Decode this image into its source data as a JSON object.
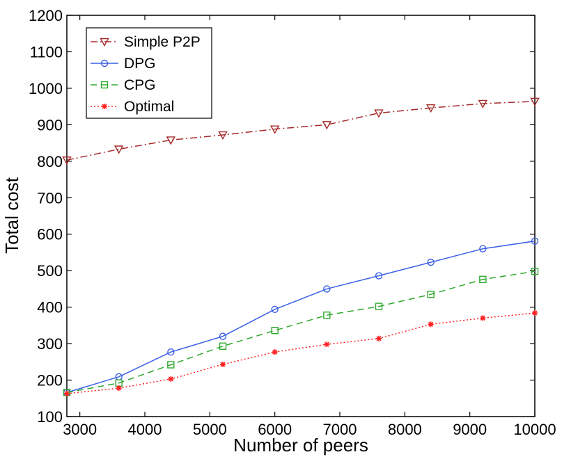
{
  "chart_data": {
    "type": "line",
    "title": "",
    "xlabel": "Number of peers",
    "ylabel": "Total cost",
    "xlim": [
      2800,
      10000
    ],
    "ylim": [
      100,
      1200
    ],
    "xticks": [
      3000,
      4000,
      5000,
      6000,
      7000,
      8000,
      9000,
      10000
    ],
    "yticks": [
      100,
      200,
      300,
      400,
      500,
      600,
      700,
      800,
      900,
      1000,
      1100,
      1200
    ],
    "x": [
      2800,
      3600,
      4400,
      5200,
      6000,
      6800,
      7600,
      8400,
      9200,
      10000
    ],
    "legend_position": "top-left",
    "series": [
      {
        "name": "Simple P2P",
        "color": "#a52a2a",
        "line_style": "dash-dot",
        "marker": "triangle-down",
        "values": [
          803,
          833,
          858,
          872,
          888,
          900,
          932,
          946,
          958,
          964
        ]
      },
      {
        "name": "DPG",
        "color": "#3a5fe5",
        "line_style": "solid",
        "marker": "circle",
        "values": [
          166,
          209,
          277,
          320,
          394,
          450,
          486,
          523,
          560,
          581
        ]
      },
      {
        "name": "CPG",
        "color": "#2fa82f",
        "line_style": "dashed",
        "marker": "square",
        "values": [
          166,
          192,
          242,
          293,
          336,
          378,
          402,
          435,
          476,
          498
        ]
      },
      {
        "name": "Optimal",
        "color": "#ff2020",
        "line_style": "dotted",
        "marker": "star",
        "values": [
          163,
          178,
          203,
          243,
          277,
          298,
          314,
          353,
          370,
          384
        ]
      }
    ]
  }
}
